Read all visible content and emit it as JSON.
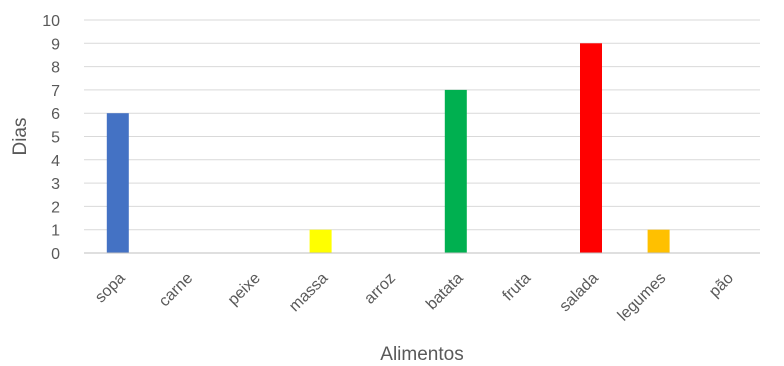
{
  "chart_data": {
    "type": "bar",
    "title": "",
    "xlabel": "Alimentos",
    "ylabel": "Dias",
    "ylim": [
      0,
      10
    ],
    "yticks": [
      0,
      1,
      2,
      3,
      4,
      5,
      6,
      7,
      8,
      9,
      10
    ],
    "grid": true,
    "legend": "none",
    "categories": [
      "sopa",
      "carne",
      "peixe",
      "massa",
      "arroz",
      "batata",
      "fruta",
      "salada",
      "legumes",
      "pão"
    ],
    "values": [
      6,
      0,
      0,
      1,
      0,
      7,
      0,
      9,
      1,
      0
    ],
    "colors": [
      "#4472c4",
      "#4472c4",
      "#4472c4",
      "#ffff00",
      "#4472c4",
      "#00b050",
      "#4472c4",
      "#ff0000",
      "#ffc000",
      "#4472c4"
    ]
  }
}
